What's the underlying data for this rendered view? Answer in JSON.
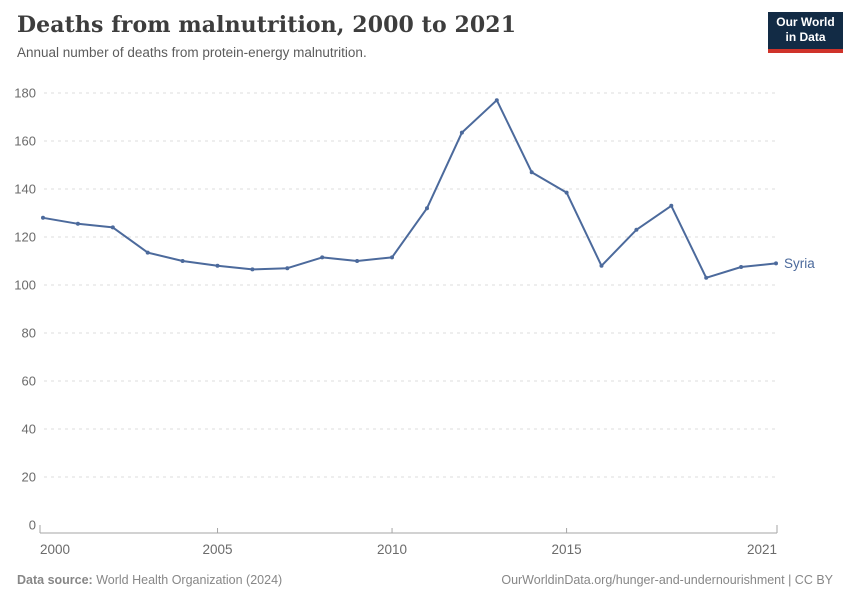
{
  "header": {
    "title": "Deaths from malnutrition, 2000 to 2021",
    "subtitle": "Annual number of deaths from protein-energy malnutrition."
  },
  "logo": {
    "line1": "Our World",
    "line2": "in Data",
    "bg_color": "#122b45",
    "accent_color": "#cf332a"
  },
  "chart_data": {
    "type": "line",
    "title": "Deaths from malnutrition, 2000 to 2021",
    "subtitle": "Annual number of deaths from protein-energy malnutrition.",
    "x": [
      2000,
      2001,
      2002,
      2003,
      2004,
      2005,
      2006,
      2007,
      2008,
      2009,
      2010,
      2011,
      2012,
      2013,
      2014,
      2015,
      2016,
      2017,
      2018,
      2019,
      2020,
      2021
    ],
    "series": [
      {
        "name": "Syria",
        "color": "#4c6a9c",
        "values": [
          128,
          125.5,
          124,
          113.5,
          110,
          108,
          106.5,
          107,
          111.5,
          110,
          111.5,
          132,
          163.5,
          177,
          147,
          138.5,
          108,
          123,
          133,
          103,
          107.5,
          109
        ]
      }
    ],
    "ylim": [
      0,
      180
    ],
    "yticks": [
      0,
      20,
      40,
      60,
      80,
      100,
      120,
      140,
      160,
      180
    ],
    "xticks": [
      2000,
      2005,
      2010,
      2015,
      2021
    ],
    "grid": "dashed-horizontal",
    "legend": "end-of-line-label",
    "colors": {
      "grid": "#dedede",
      "axis": "#a5a5a5",
      "tick_text": "#6b6b6b"
    }
  },
  "footer": {
    "source_label": "Data source:",
    "source_value": "World Health Organization (2024)",
    "credit": "OurWorldinData.org/hunger-and-undernourishment | CC BY"
  }
}
